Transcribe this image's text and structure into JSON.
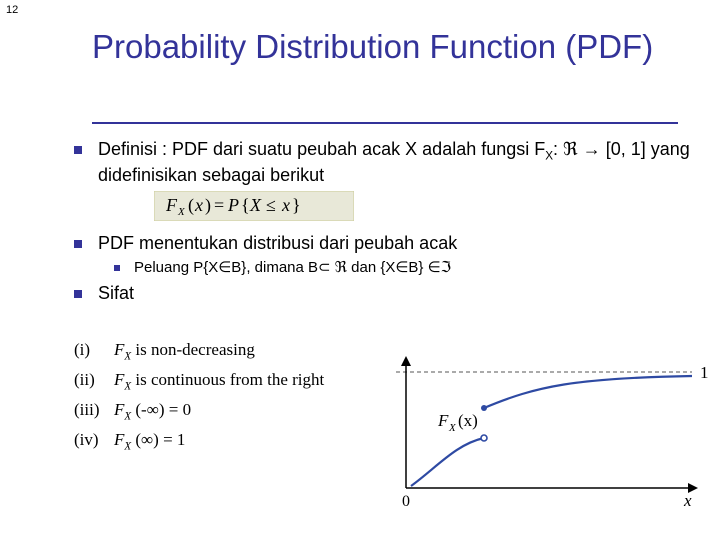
{
  "pageNumber": "12",
  "title": "Probability Distribution Function (PDF)",
  "bullets": {
    "b1_text": "Definisi : PDF dari suatu peubah acak X adalah fungsi F",
    "b1_sub": "X",
    "b1_text2": ": ℜ → [0, 1] yang didefinisikan sebagai berikut",
    "formula": "F_X(x) = P{X ≤ x}",
    "b2_text": "PDF menentukan distribusi dari peubah acak",
    "b2a_text": "Peluang P{X∈B}, dimana B⊂ ℜ dan {X∈B} ∈ℑ",
    "b3_text": "Sifat"
  },
  "properties": {
    "p1_num": "(i)",
    "p1_lab": "F",
    "p1_sub": "X",
    "p1_rest": " is non-decreasing",
    "p2_num": "(ii)",
    "p2_lab": "F",
    "p2_sub": "X",
    "p2_rest": " is continuous from the right",
    "p3_num": "(iii)",
    "p3_lab": "F",
    "p3_sub": "X",
    "p3_arg": " (-∞) = 0",
    "p4_num": "(iv)",
    "p4_lab": "F",
    "p4_sub": "X",
    "p4_arg": " (∞) = 1"
  },
  "chart": {
    "type": "cdf-step-curve",
    "xlim": [
      0,
      300
    ],
    "ylim": [
      0,
      150
    ],
    "axis_color": "#000000",
    "dash_color": "#555555",
    "curve_color": "#2e4aa3",
    "label_fx": "F",
    "label_fx_sub": "X",
    "label_fx_arg": "(x)",
    "x_axis_label": "x",
    "origin_label": "0",
    "one_label": "1",
    "curve": {
      "seg1_start": [
        15,
        138
      ],
      "seg1_ctrl1": [
        40,
        120
      ],
      "seg1_ctrl2": [
        60,
        96
      ],
      "seg1_end": [
        88,
        90
      ],
      "jump_from": [
        88,
        90
      ],
      "jump_to": [
        88,
        60
      ],
      "jump_r": 3,
      "seg2_start": [
        88,
        60
      ],
      "seg2_ctrl1": [
        140,
        38
      ],
      "seg2_ctrl2": [
        180,
        30
      ],
      "seg2_end": [
        296,
        28
      ]
    },
    "dash_y": 24,
    "axis_origin": [
      10,
      140
    ],
    "axis_xend": [
      300,
      140
    ],
    "axis_yend": [
      10,
      10
    ],
    "arrow_size": 5
  }
}
